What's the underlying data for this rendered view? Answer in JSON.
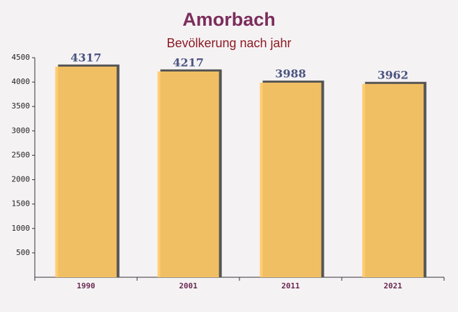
{
  "chart_data": {
    "type": "bar",
    "title": "Amorbach",
    "subtitle": "Bevölkerung nach jahr",
    "categories": [
      "1990",
      "2001",
      "2011",
      "2021"
    ],
    "values": [
      4317,
      4217,
      3988,
      3962
    ],
    "color": "#ffc965",
    "ylim": [
      0,
      4500
    ],
    "yticks": [
      500,
      1000,
      1500,
      2000,
      2500,
      3000,
      3500,
      4000,
      4500
    ],
    "grid": false
  }
}
